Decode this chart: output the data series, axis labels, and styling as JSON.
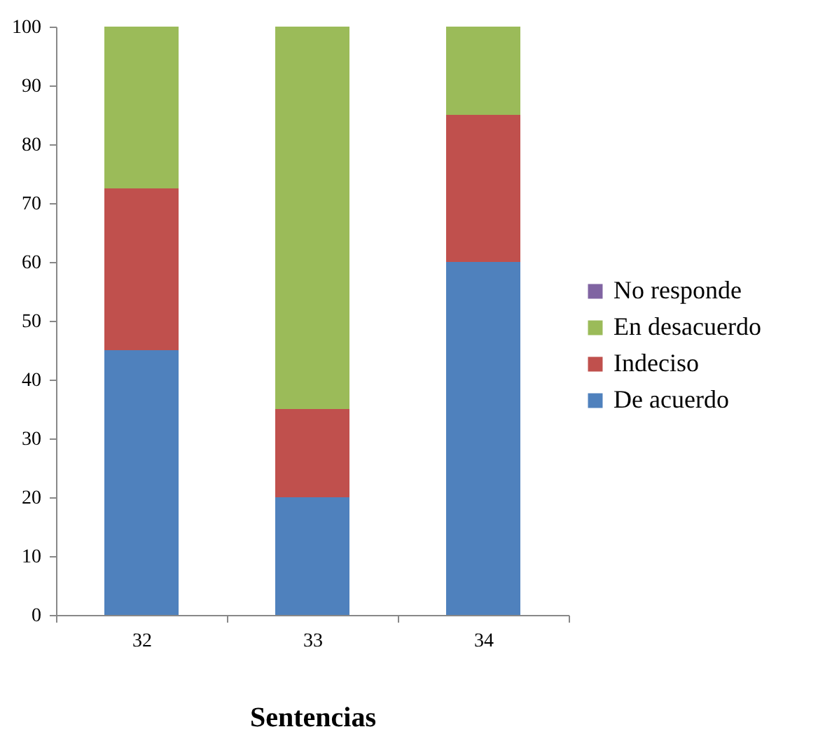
{
  "chart_data": {
    "type": "bar",
    "stacked": true,
    "xlabel": "Sentencias",
    "categories": [
      "32",
      "33",
      "34"
    ],
    "series": [
      {
        "name": "De acuerdo",
        "color": "#4f81bd",
        "values": [
          45,
          20,
          60
        ]
      },
      {
        "name": "Indeciso",
        "color": "#c0504d",
        "values": [
          27.5,
          15,
          25
        ]
      },
      {
        "name": "En desacuerdo",
        "color": "#9bbb59",
        "values": [
          27.5,
          65,
          15
        ]
      },
      {
        "name": "No responde",
        "color": "#8064a2",
        "values": [
          0,
          0,
          0
        ]
      }
    ],
    "ylim": [
      0,
      100
    ],
    "yticks": [
      0,
      10,
      20,
      30,
      40,
      50,
      60,
      70,
      80,
      90,
      100
    ],
    "grid": false,
    "legend": "right"
  }
}
